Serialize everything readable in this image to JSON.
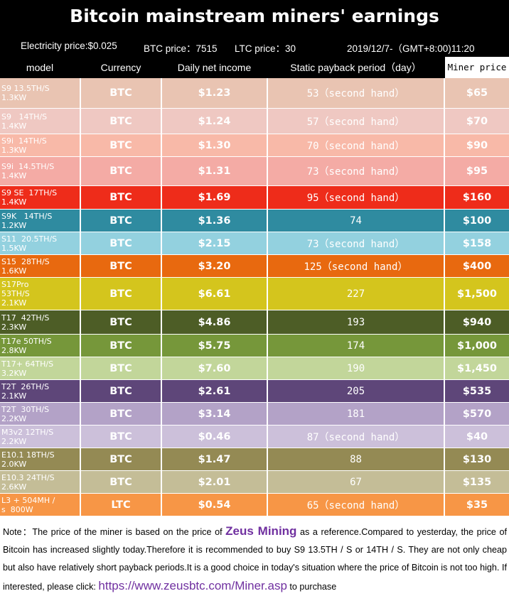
{
  "header": {
    "title": "Bitcoin mainstream miners' earnings",
    "electricity": "Electricity price:$0.025",
    "btc": "BTC price：7515",
    "ltc": "LTC price：30",
    "time": "2019/12/7-（GMT+8:00)11:20"
  },
  "table": {
    "columns": [
      "model",
      "Currency",
      "Daily net income",
      "Static payback period（day）",
      "Miner price"
    ],
    "rows": [
      {
        "model": [
          "S9 13.5TH/S",
          "1.3KW"
        ],
        "currency": "BTC",
        "income": "$1.23",
        "payback": "53（second hand）",
        "price": "$65",
        "color": "#e9c4b2",
        "h": 43
      },
      {
        "model": [
          "S9   14TH/S",
          "1.4KW"
        ],
        "currency": "BTC",
        "income": "$1.24",
        "payback": "57（second hand）",
        "price": "$70",
        "color": "#efc8c2",
        "h": 36
      },
      {
        "model": [
          "S9i  14TH/S",
          "1.3KW"
        ],
        "currency": "BTC",
        "income": "$1.30",
        "payback": "70（second hand）",
        "price": "$90",
        "color": "#f8b9a8",
        "h": 32
      },
      {
        "model": [
          "S9i  14.5TH/S",
          "1.4KW"
        ],
        "currency": "BTC",
        "income": "$1.31",
        "payback": "73（second hand）",
        "price": "$95",
        "color": "#f4aba5",
        "h": 41
      },
      {
        "model": [
          "S9 SE  17TH/S",
          "1.4KW"
        ],
        "currency": "BTC",
        "income": "$1.69",
        "payback": "95（second hand）",
        "price": "$160",
        "color": "#ee2c1a",
        "h": 33
      },
      {
        "model": [
          "S9K   14TH/S",
          "1.2KW"
        ],
        "currency": "BTC",
        "income": "$1.36",
        "payback": "74",
        "price": "$100",
        "color": "#2f8ba0",
        "h": 32
      },
      {
        "model": [
          "S11  20.5TH/S",
          "1.5KW"
        ],
        "currency": "BTC",
        "income": "$2.15",
        "payback": "73（second hand）",
        "price": "$158",
        "color": "#93d1df",
        "h": 32
      },
      {
        "model": [
          "S15  28TH/S",
          "1.6KW"
        ],
        "currency": "BTC",
        "income": "$3.20",
        "payback": "125（second hand）",
        "price": "$400",
        "color": "#e8690f",
        "h": 32
      },
      {
        "model": [
          "S17Pro",
          "53TH/S",
          "2.1KW"
        ],
        "currency": "BTC",
        "income": "$6.61",
        "payback": "227",
        "price": "$1,500",
        "color": "#d4c51d",
        "h": 46
      },
      {
        "model": [
          "T17  42TH/S",
          "2.3KW"
        ],
        "currency": "BTC",
        "income": "$4.86",
        "payback": "193",
        "price": "$940",
        "color": "#4d5d26",
        "h": 34
      },
      {
        "model": [
          "T17e 50TH/S",
          "2.8KW"
        ],
        "currency": "BTC",
        "income": "$5.75",
        "payback": "174",
        "price": "$1,000",
        "color": "#76973a",
        "h": 32
      },
      {
        "model": [
          "T17+ 64TH/S",
          "3.2KW"
        ],
        "currency": "BTC",
        "income": "$7.60",
        "payback": "190",
        "price": "$1,450",
        "color": "#c2d69a",
        "h": 32
      },
      {
        "model": [
          "T2T  26TH/S",
          "2.1KW"
        ],
        "currency": "BTC",
        "income": "$2.61",
        "payback": "205",
        "price": "$535",
        "color": "#5e4679",
        "h": 32
      },
      {
        "model": [
          "T2T  30TH/S",
          "2.2KW"
        ],
        "currency": "BTC",
        "income": "$3.14",
        "payback": "181",
        "price": "$570",
        "color": "#b3a2c7",
        "h": 32
      },
      {
        "model": [
          "M3v2 12TH/S",
          "2.2KW"
        ],
        "currency": "BTC",
        "income": "$0.46",
        "payback": "87（second hand）",
        "price": "$40",
        "color": "#ccc0da",
        "h": 32
      },
      {
        "model": [
          "E10.1 18TH/S",
          "2.0KW"
        ],
        "currency": "BTC",
        "income": "$1.47",
        "payback": "88",
        "price": "$130",
        "color": "#948a54",
        "h": 32
      },
      {
        "model": [
          "E10.3 24TH/S",
          "2.6KW"
        ],
        "currency": "BTC",
        "income": "$2.01",
        "payback": "67",
        "price": "$135",
        "color": "#c4bd97",
        "h": 32
      },
      {
        "model": [
          "L3 + 504MH /",
          "s  800W"
        ],
        "currency": "LTC",
        "income": "$0.54",
        "payback": "65（second hand）",
        "price": "$35",
        "color": "#f79646",
        "h": 32
      }
    ]
  },
  "note": {
    "before": "Note：The price of the miner is based on the price of ",
    "brand": "Zeus Mining",
    "middle": " as a reference.Compared to yesterday, the price of Bitcoin has increased slightly today.Therefore it is recommended to buy S9 13.5TH / S or 14TH / S. They are not only cheap but also have relatively short payback periods.It is a good choice in today's situation where the price of Bitcoin is not too high. If interested, please click: ",
    "link": "https://www.zeusbtc.com/Miner.asp",
    "after": " to purchase"
  }
}
